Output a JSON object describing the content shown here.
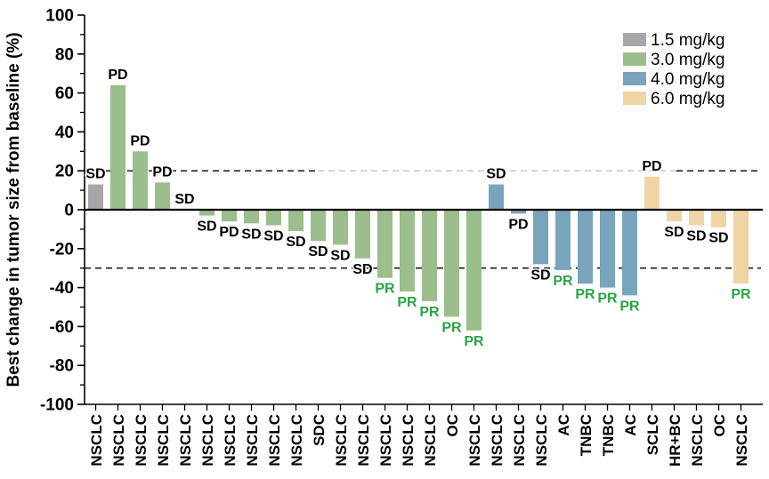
{
  "chart_data": {
    "type": "bar",
    "title": "",
    "ylabel": "Best change in tumor size from baseline (%)",
    "xlabel": "",
    "ylim": [
      -100,
      100
    ],
    "yticks": [
      100,
      80,
      60,
      40,
      20,
      0,
      -20,
      -40,
      -60,
      -80,
      -100
    ],
    "minor_tick_step": 10,
    "grid": false,
    "legend_position": "top-right",
    "reference_lines": [
      {
        "y": 20,
        "style": "dashed",
        "color": "#000000"
      },
      {
        "y": -30,
        "style": "dashed",
        "color": "#000000"
      }
    ],
    "muted_dash_color": "#c2c2c2",
    "response_label_colors": {
      "SD": "#000000",
      "PD": "#000000",
      "PR": "#2aa347"
    },
    "legend": [
      {
        "label": "1.5 mg/kg",
        "color": "#a7a6ab"
      },
      {
        "label": "3.0 mg/kg",
        "color": "#9cbd8c"
      },
      {
        "label": "4.0 mg/kg",
        "color": "#79a5bc"
      },
      {
        "label": "6.0 mg/kg",
        "color": "#f0d5a4"
      }
    ],
    "bars": [
      {
        "label": "NSCLC",
        "dose": "1.5 mg/kg",
        "value": 13,
        "response": "SD"
      },
      {
        "label": "NSCLC",
        "dose": "3.0 mg/kg",
        "value": 64,
        "response": "PD"
      },
      {
        "label": "NSCLC",
        "dose": "3.0 mg/kg",
        "value": 30,
        "response": "PD"
      },
      {
        "label": "NSCLC",
        "dose": "3.0 mg/kg",
        "value": 14,
        "response": "PD"
      },
      {
        "label": "NSCLC",
        "dose": "3.0 mg/kg",
        "value": 0,
        "response": "SD"
      },
      {
        "label": "NSCLC",
        "dose": "3.0 mg/kg",
        "value": -3,
        "response": "SD"
      },
      {
        "label": "NSCLC",
        "dose": "3.0 mg/kg",
        "value": -6,
        "response": "PD"
      },
      {
        "label": "NSCLC",
        "dose": "3.0 mg/kg",
        "value": -7,
        "response": "SD"
      },
      {
        "label": "NSCLC",
        "dose": "3.0 mg/kg",
        "value": -8,
        "response": "SD"
      },
      {
        "label": "NSCLC",
        "dose": "3.0 mg/kg",
        "value": -11,
        "response": "SD"
      },
      {
        "label": "SDC",
        "dose": "3.0 mg/kg",
        "value": -16,
        "response": "SD"
      },
      {
        "label": "NSCLC",
        "dose": "3.0 mg/kg",
        "value": -18,
        "response": "SD"
      },
      {
        "label": "NSCLC",
        "dose": "3.0 mg/kg",
        "value": -25,
        "response": "SD"
      },
      {
        "label": "NSCLC",
        "dose": "3.0 mg/kg",
        "value": -35,
        "response": "PR"
      },
      {
        "label": "NSCLC",
        "dose": "3.0 mg/kg",
        "value": -42,
        "response": "PR"
      },
      {
        "label": "NSCLC",
        "dose": "3.0 mg/kg",
        "value": -47,
        "response": "PR"
      },
      {
        "label": "OC",
        "dose": "3.0 mg/kg",
        "value": -55,
        "response": "PR"
      },
      {
        "label": "NSCLC",
        "dose": "3.0 mg/kg",
        "value": -62,
        "response": "PR"
      },
      {
        "label": "NSCLC",
        "dose": "4.0 mg/kg",
        "value": 13,
        "response": "SD"
      },
      {
        "label": "NSCLC",
        "dose": "4.0 mg/kg",
        "value": -2,
        "response": "PD"
      },
      {
        "label": "NSCLC",
        "dose": "4.0 mg/kg",
        "value": -28,
        "response": "SD"
      },
      {
        "label": "AC",
        "dose": "4.0 mg/kg",
        "value": -31,
        "response": "PR"
      },
      {
        "label": "TNBC",
        "dose": "4.0 mg/kg",
        "value": -38,
        "response": "PR"
      },
      {
        "label": "TNBC",
        "dose": "4.0 mg/kg",
        "value": -40,
        "response": "PR"
      },
      {
        "label": "AC",
        "dose": "4.0 mg/kg",
        "value": -44,
        "response": "PR"
      },
      {
        "label": "SCLC",
        "dose": "6.0 mg/kg",
        "value": 17,
        "response": "PD"
      },
      {
        "label": "HR+BC",
        "dose": "6.0 mg/kg",
        "value": -6,
        "response": "SD"
      },
      {
        "label": "NSCLC",
        "dose": "6.0 mg/kg",
        "value": -8,
        "response": "SD"
      },
      {
        "label": "OC",
        "dose": "6.0 mg/kg",
        "value": -9,
        "response": "SD"
      },
      {
        "label": "NSCLC",
        "dose": "6.0 mg/kg",
        "value": -38,
        "response": "PR"
      }
    ]
  }
}
